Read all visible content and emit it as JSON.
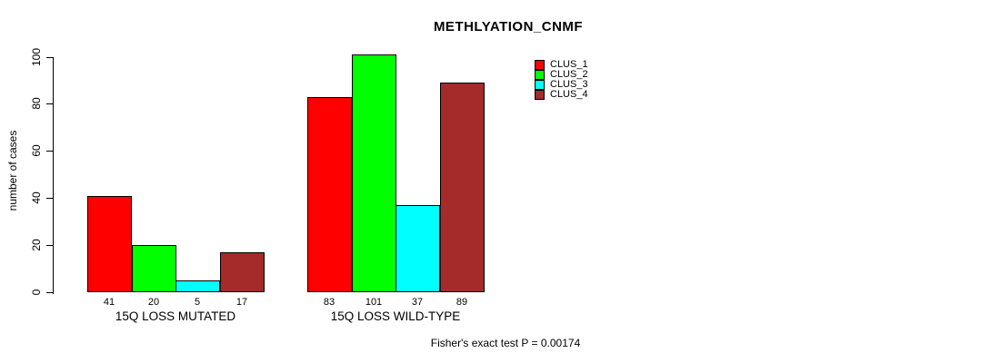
{
  "chart_data": {
    "type": "bar",
    "title": "METHLYATION_CNMF",
    "ylabel": "number of cases",
    "xlabel": "",
    "ylim": [
      0,
      100
    ],
    "yticks": [
      0,
      20,
      40,
      60,
      80,
      100
    ],
    "grid": false,
    "legend_position": "top-right",
    "categories": [
      "15Q LOSS MUTATED",
      "15Q LOSS WILD-TYPE"
    ],
    "series": [
      {
        "name": "CLUS_1",
        "color": "#FF0000",
        "values": [
          41,
          83
        ]
      },
      {
        "name": "CLUS_2",
        "color": "#00FF00",
        "values": [
          20,
          101
        ]
      },
      {
        "name": "CLUS_3",
        "color": "#00FFFF",
        "values": [
          5,
          37
        ]
      },
      {
        "name": "CLUS_4",
        "color": "#A52A2A",
        "values": [
          17,
          89
        ]
      }
    ],
    "bar_value_labels": [
      [
        41,
        20,
        5,
        17
      ],
      [
        83,
        101,
        37,
        89
      ]
    ],
    "annotation": "Fisher's exact test P = 0.00174"
  },
  "colors": {
    "background": "#FFFFFF",
    "axis": "#000000",
    "text": "#000000"
  }
}
